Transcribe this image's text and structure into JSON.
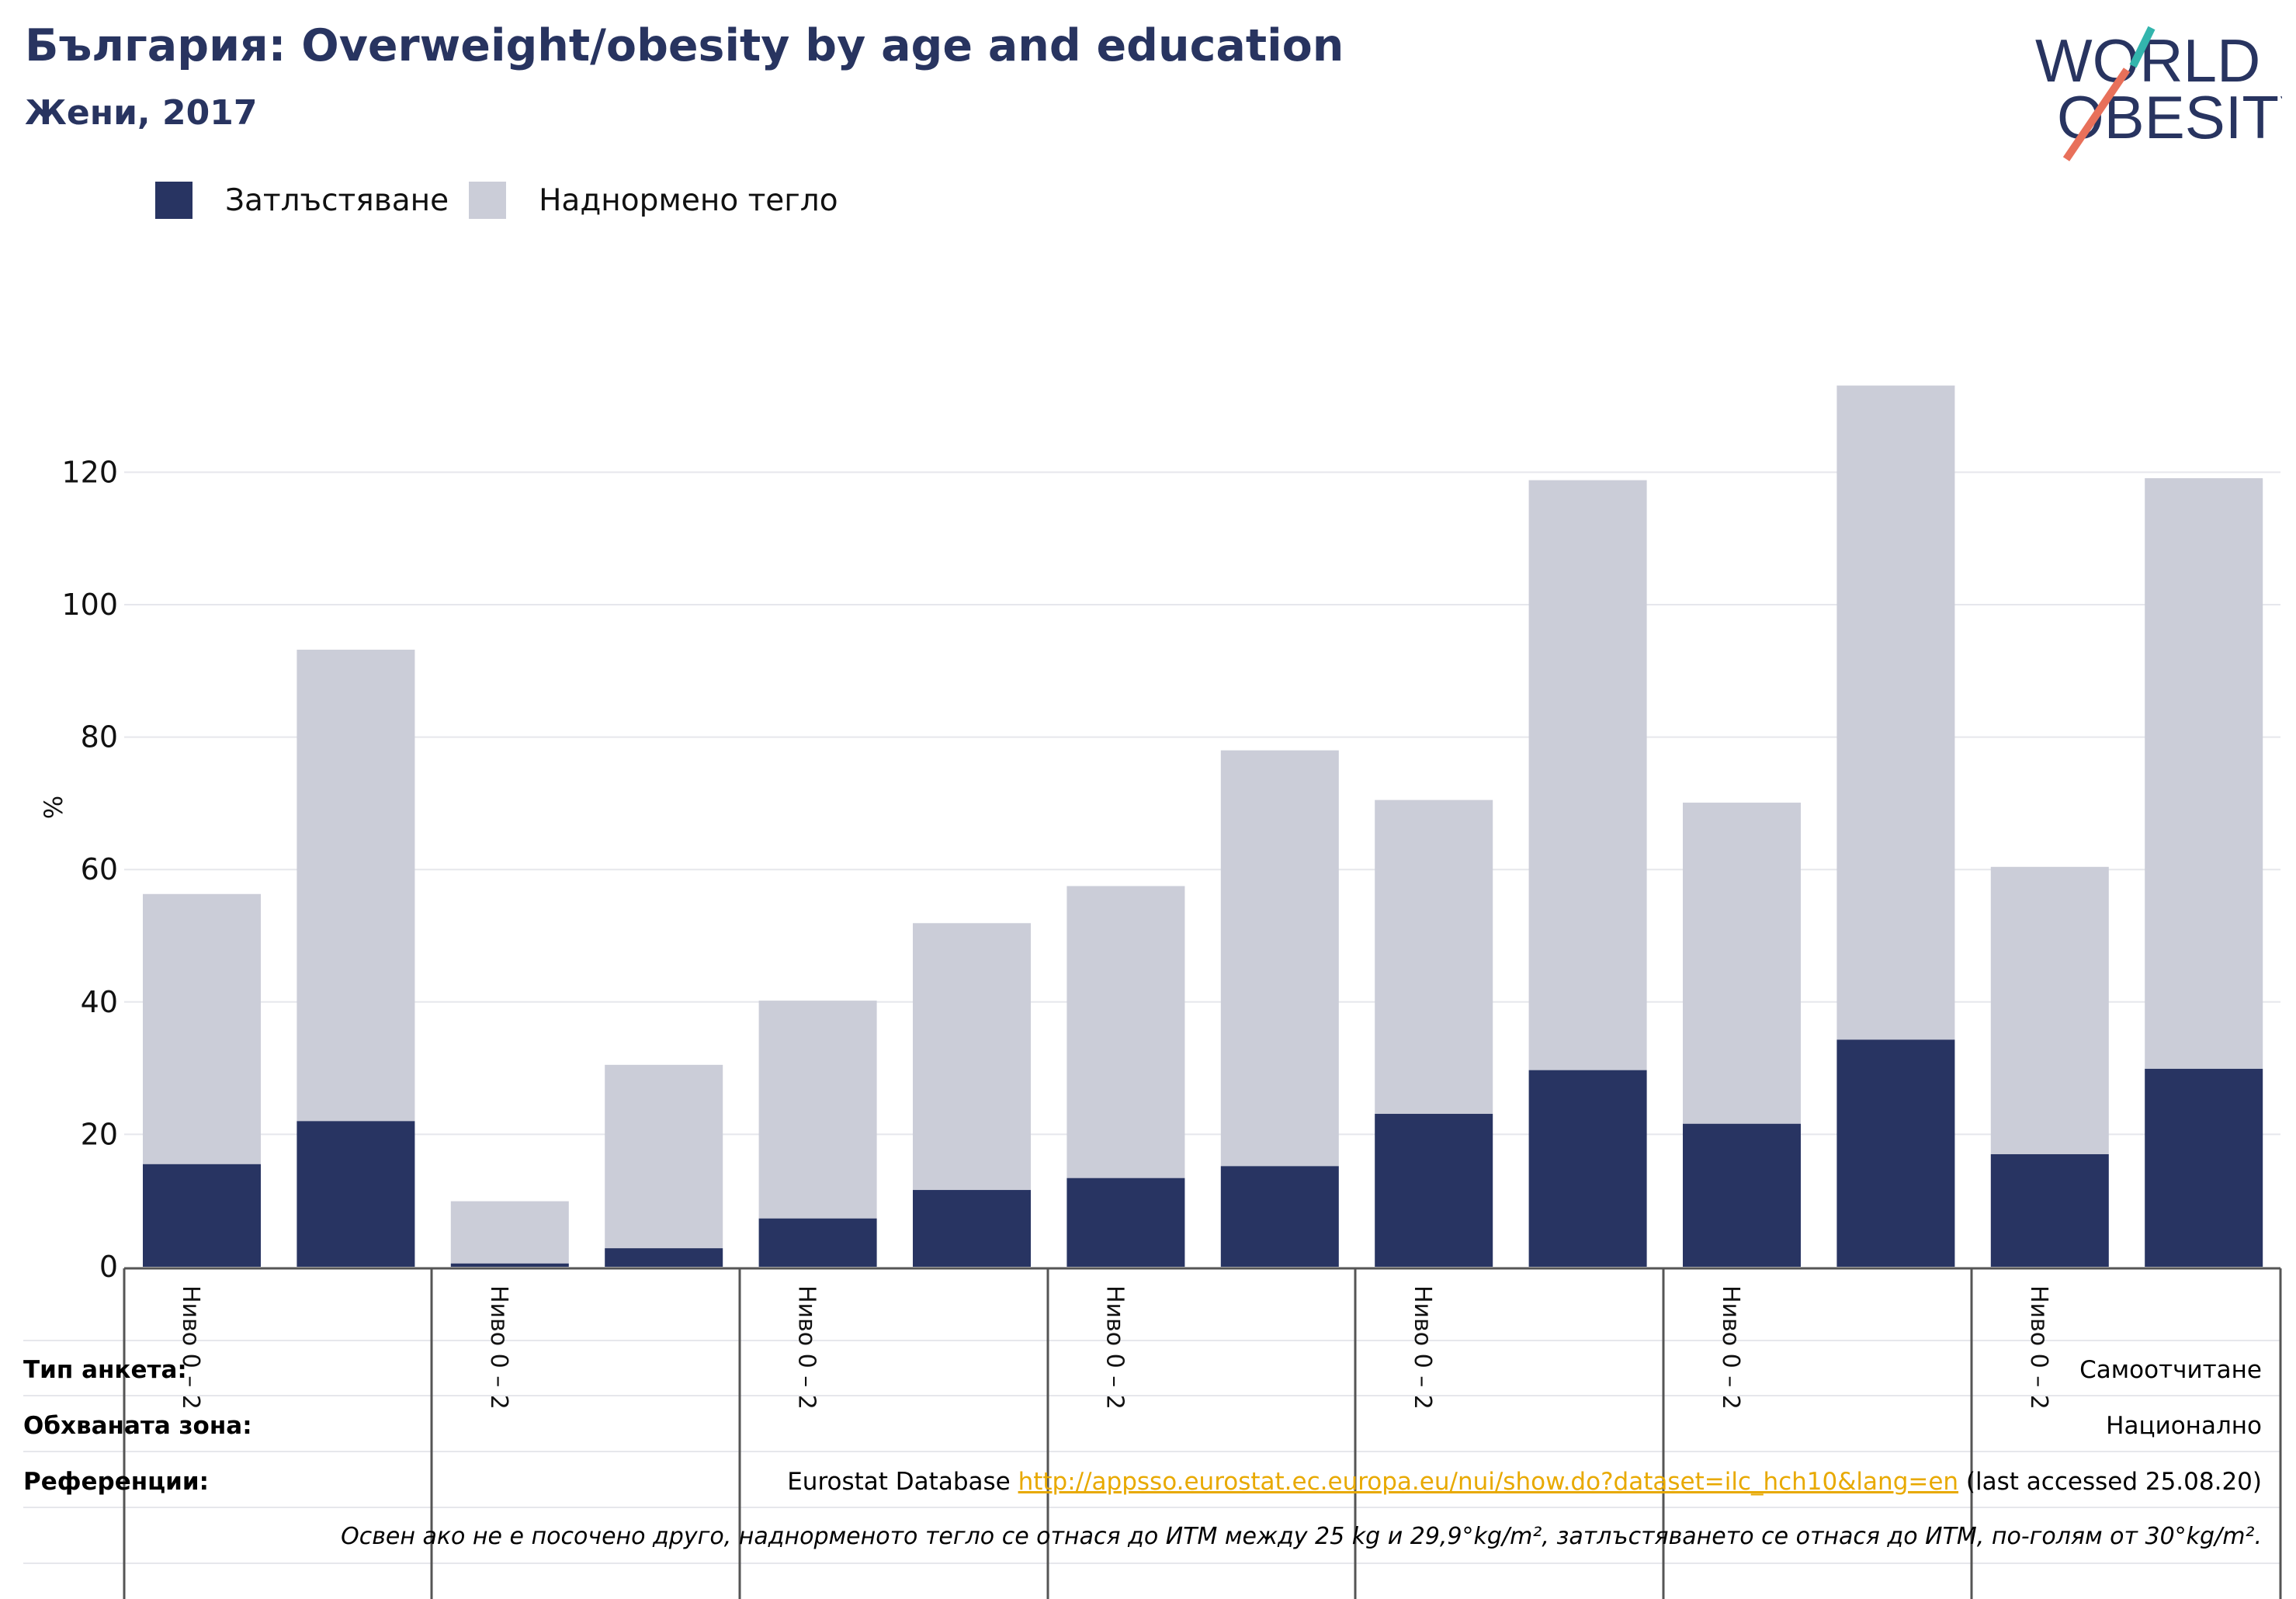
{
  "header": {
    "title": "България: Overweight/obesity by age and education",
    "subtitle": "Жени, 2017"
  },
  "logo": {
    "line1": "WORLD",
    "line2": "OBESITY",
    "name": "world-obesity-logo"
  },
  "legend": {
    "items": [
      {
        "label": "Затлъстяване",
        "color": "#283462"
      },
      {
        "label": "Наднормено тегло",
        "color": "#cbcdd8"
      }
    ]
  },
  "chart_data": {
    "type": "bar",
    "stacked": true,
    "ylabel": "%",
    "ylim": [
      0,
      135
    ],
    "yticks": [
      0,
      20,
      40,
      60,
      80,
      100,
      120
    ],
    "grid": true,
    "legend_position": "top-left",
    "categories": [
      "Ниво 0 – 2",
      "",
      "Ниво 0 – 2",
      "",
      "Ниво 0 – 2",
      "",
      "Ниво 0 – 2",
      "",
      "Ниво 0 – 2",
      "",
      "Ниво 0 – 2",
      "",
      "Ниво 0 – 2",
      ""
    ],
    "series": [
      {
        "name": "Затлъстяване",
        "color": "#283462",
        "values": [
          15.5,
          22.0,
          0.5,
          2.8,
          7.3,
          11.6,
          13.4,
          15.2,
          23.1,
          29.7,
          21.6,
          34.3,
          17.0,
          29.9
        ]
      },
      {
        "name": "Наднормено тегло",
        "color": "#cbcdd8",
        "values": [
          40.8,
          71.2,
          9.4,
          27.7,
          32.9,
          40.3,
          44.1,
          62.8,
          47.4,
          89.1,
          48.5,
          98.8,
          43.4,
          89.2
        ]
      }
    ]
  },
  "info": {
    "survey_label": "Тип анкета:",
    "survey_value": "Самоотчитане",
    "area_label": "Обхваната зона:",
    "area_value": "Национално",
    "ref_label": "Референции:",
    "ref_prefix": "Eurostat Database",
    "ref_link": "http://appsso.eurostat.ec.europa.eu/nui/show.do?dataset=ilc_hch10&lang=en",
    "ref_suffix": "(last accessed 25.08.20)",
    "note": "Освен ако не е посочено друго, наднорменото тегло се отнася до ИТМ между 25 kg и 29,9°kg/m², затлъстяването се отнася до ИТМ, по-голям от 30°kg/m²."
  }
}
